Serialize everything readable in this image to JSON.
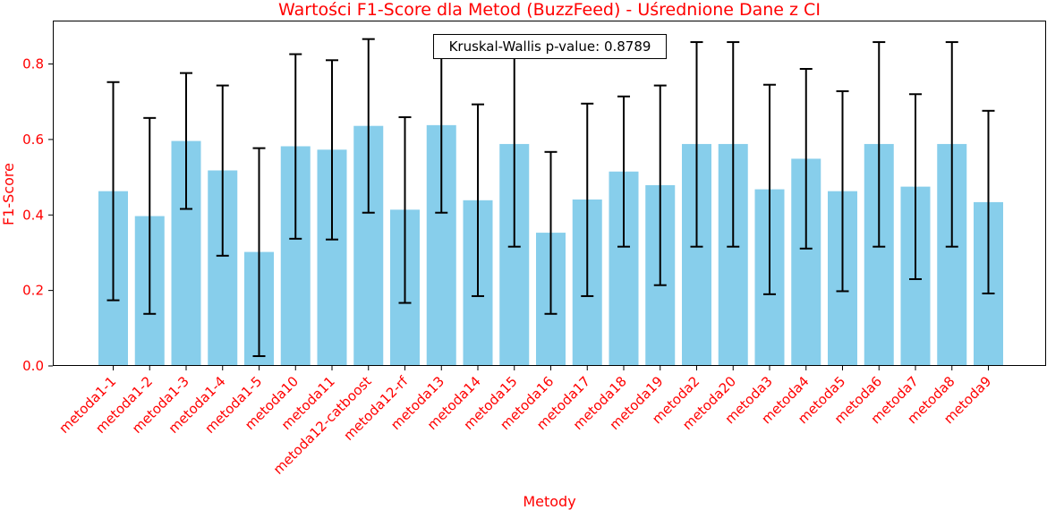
{
  "chart_data": {
    "type": "bar",
    "title": "Wartości F1-Score dla Metod (BuzzFeed) - Uśrednione Dane z CI",
    "xlabel": "Metody",
    "ylabel": "F1-Score",
    "ylim": [
      0,
      0.915
    ],
    "yticks": [
      "0.0",
      "0.2",
      "0.4",
      "0.6",
      "0.8"
    ],
    "grid": false,
    "annotation": "Kruskal-Wallis p-value: 0.8789",
    "categories": [
      "metoda1-1",
      "metoda1-2",
      "metoda1-3",
      "metoda1-4",
      "metoda1-5",
      "metoda10",
      "metoda11",
      "metoda12-catboost",
      "metoda12-rf",
      "metoda13",
      "metoda14",
      "metoda15",
      "metoda16",
      "metoda17",
      "metoda18",
      "metoda19",
      "metoda2",
      "metoda20",
      "metoda3",
      "metoda4",
      "metoda5",
      "metoda6",
      "metoda7",
      "metoda8",
      "metoda9"
    ],
    "values": [
      0.463,
      0.397,
      0.596,
      0.518,
      0.302,
      0.582,
      0.573,
      0.636,
      0.414,
      0.638,
      0.439,
      0.588,
      0.353,
      0.441,
      0.515,
      0.479,
      0.588,
      0.588,
      0.468,
      0.549,
      0.463,
      0.588,
      0.475,
      0.588,
      0.434
    ],
    "ci_lower": [
      0.174,
      0.138,
      0.416,
      0.292,
      0.026,
      0.337,
      0.335,
      0.406,
      0.167,
      0.406,
      0.185,
      0.316,
      0.138,
      0.185,
      0.316,
      0.214,
      0.316,
      0.316,
      0.19,
      0.311,
      0.198,
      0.316,
      0.23,
      0.316,
      0.192
    ],
    "ci_upper": [
      0.752,
      0.657,
      0.776,
      0.743,
      0.577,
      0.826,
      0.81,
      0.866,
      0.659,
      0.872,
      0.693,
      0.861,
      0.567,
      0.695,
      0.714,
      0.743,
      0.858,
      0.858,
      0.745,
      0.787,
      0.728,
      0.858,
      0.72,
      0.858,
      0.676
    ],
    "colors": {
      "bar": "#87ceeb",
      "error": "#000000",
      "text": "#ff0000",
      "axis": "#000000"
    }
  }
}
